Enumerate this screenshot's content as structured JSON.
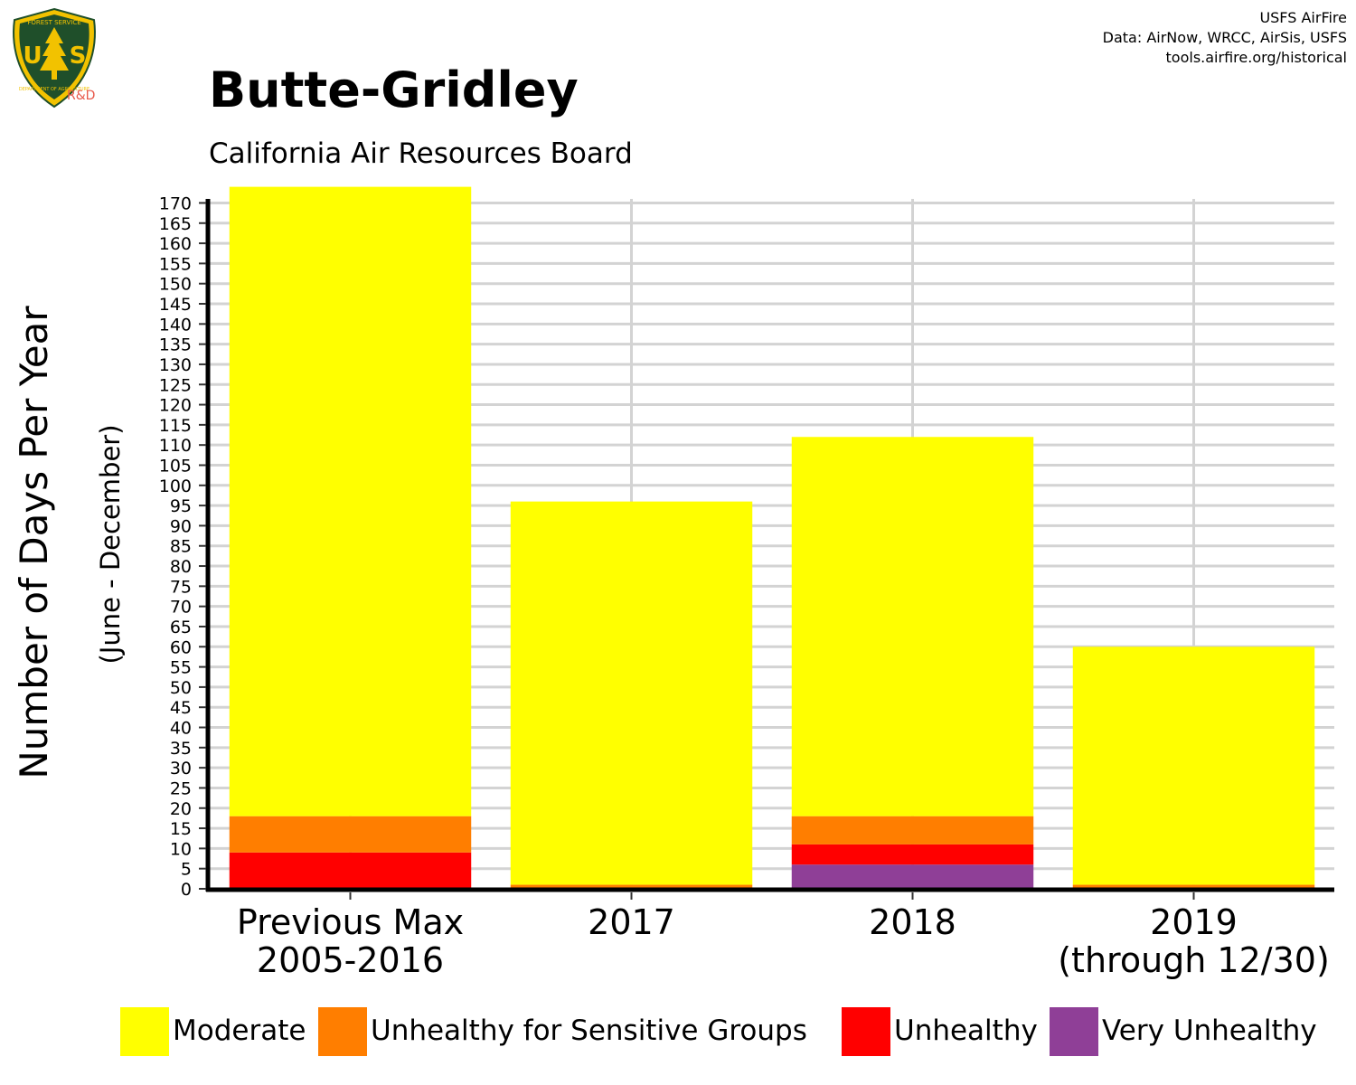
{
  "logo": {
    "text_top": "FOREST SERVICE",
    "text_main": "US",
    "text_bottom": "DEPARTMENT OF AGRICULTURE",
    "subtext": "R&D"
  },
  "credits": {
    "line1": "USFS AirFire",
    "line2": "Data: AirNow, WRCC, AirSis, USFS",
    "line3": "tools.airfire.org/historical"
  },
  "colors": {
    "moderate": "#ffff00",
    "usg": "#ff7e00",
    "unhealthy": "#ff0000",
    "very_unhealthy": "#8f3f97",
    "grid": "#d3d3d3",
    "axis": "#000000"
  },
  "chart_data": {
    "type": "bar",
    "stacked": true,
    "title": "Butte-Gridley",
    "subtitle": "California Air Resources Board",
    "ylabel": "Number of Days Per Year",
    "ylabel_sub": "(June - December)",
    "xlabel": "",
    "ylim": [
      0,
      171
    ],
    "yticks": [
      0,
      5,
      10,
      15,
      20,
      25,
      30,
      35,
      40,
      45,
      50,
      55,
      60,
      65,
      70,
      75,
      80,
      85,
      90,
      95,
      100,
      105,
      110,
      115,
      120,
      125,
      130,
      135,
      140,
      145,
      150,
      155,
      160,
      165,
      170
    ],
    "grid": true,
    "legend_position": "bottom",
    "categories": [
      [
        "Previous Max",
        "2005-2016"
      ],
      [
        "2017"
      ],
      [
        "2018"
      ],
      [
        "2019",
        "(through 12/30)"
      ]
    ],
    "series": [
      {
        "name": "Very Unhealthy",
        "color": "#8f3f97",
        "values": [
          0,
          0,
          6,
          0
        ]
      },
      {
        "name": "Unhealthy",
        "color": "#ff0000",
        "values": [
          9,
          0,
          5,
          0
        ]
      },
      {
        "name": "Unhealthy for Sensitive Groups",
        "color": "#ff7e00",
        "values": [
          9,
          1,
          7,
          1
        ]
      },
      {
        "name": "Moderate",
        "color": "#ffff00",
        "values": [
          156,
          95,
          94,
          59
        ]
      }
    ],
    "legend_order": [
      "Moderate",
      "Unhealthy for Sensitive Groups",
      "Unhealthy",
      "Very Unhealthy"
    ]
  }
}
